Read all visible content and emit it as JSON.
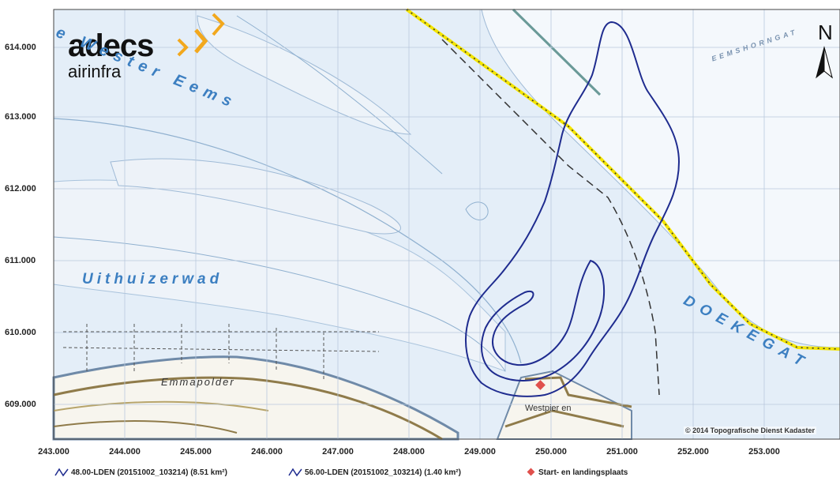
{
  "logo": {
    "main": "adecs",
    "sub": "airinfra",
    "accent_color": "#f2a81d"
  },
  "north_label": "N",
  "y_ticks": [
    "614.000",
    "613.000",
    "612.000",
    "611.000",
    "610.000",
    "609.000"
  ],
  "x_ticks": [
    "243.000",
    "244.000",
    "245.000",
    "246.000",
    "247.000",
    "248.000",
    "249.000",
    "250.000",
    "251.000",
    "252.000",
    "253.000"
  ],
  "map_labels": {
    "wester_eems": "e Wester Eems",
    "uithuizerwad": "Uithuizerwad",
    "doekegat": "DOEKEGAT",
    "emmapolder": "Emmapolder",
    "westpier": "Westpier en",
    "eemshorn": "EEMSHORNGAT"
  },
  "copyright": "© 2014 Topografische Dienst Kadaster",
  "legend": {
    "contour_48": "48.00-LDEN (20151002_103214) (8.51 km²)",
    "contour_56": "56.00-LDEN (20151002_103214) (1.40 km²)",
    "site": "Start- en landingsplaats"
  },
  "colors": {
    "water": "#e4eef8",
    "land": "#f7f5ee",
    "grid": "#b9c8dd",
    "contour": "#1f2c8f",
    "border": "#f4e500",
    "site_marker": "#e0504c",
    "road": "#8f7b4a"
  }
}
